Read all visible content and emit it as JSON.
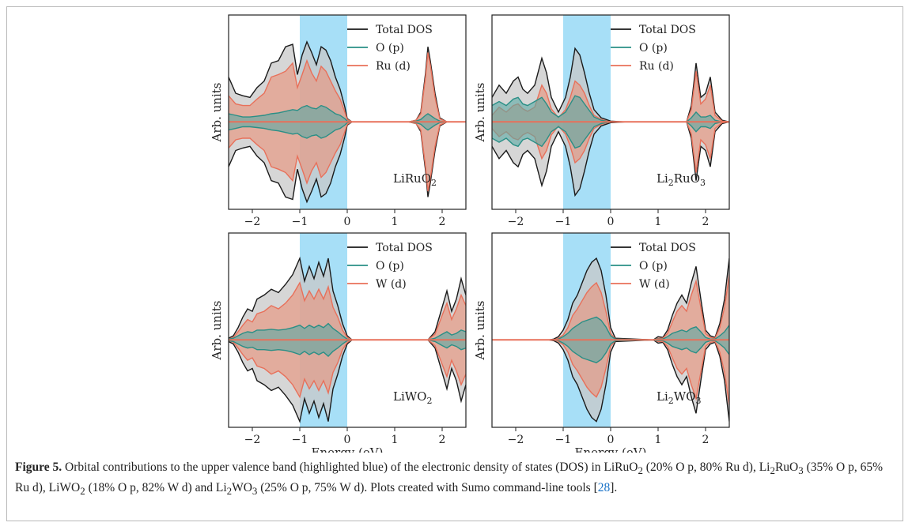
{
  "caption": {
    "label": "Figure 5.",
    "text_a": " Orbital contributions to the upper valence band (highlighted blue) of the electronic density of states (DOS) in LiRuO",
    "text_b": " (20% O p, 80% Ru d), Li",
    "text_c": "RuO",
    "text_d": " (35% O p, 65% Ru d), LiWO",
    "text_e": " (18% O p, 82% W d) and Li",
    "text_f": "WO",
    "text_g": " (25% O p, 75% W d). Plots created with Sumo command-line tools ",
    "ref_open": "[",
    "ref": "28",
    "ref_close": "].",
    "sub2": "2",
    "sub3": "3"
  },
  "colors": {
    "total": "#1a1a1a",
    "o_p": "#2a8f86",
    "metal_d": "#e8705a",
    "highlight": "#a7dff7",
    "total_fill": "#c8c8c8",
    "o_fill": "#5aa8a3",
    "d_fill": "#e79a85"
  },
  "chart_data": [
    {
      "type": "area",
      "material": "LiRuO2",
      "label_main": "LiRuO",
      "label_sub": [
        "2"
      ],
      "xlabel": "",
      "ylabel": "Arb. units",
      "xlim": [
        -2.5,
        2.5
      ],
      "xticks": [
        -2,
        -1,
        0,
        1,
        2
      ],
      "highlight": [
        -1,
        0
      ],
      "legend": [
        "Total DOS",
        "O (p)",
        "Ru (d)"
      ],
      "x": [
        -2.5,
        -2.35,
        -2.2,
        -2.05,
        -1.9,
        -1.75,
        -1.6,
        -1.45,
        -1.3,
        -1.15,
        -1.05,
        -0.95,
        -0.85,
        -0.75,
        -0.65,
        -0.55,
        -0.45,
        -0.35,
        -0.25,
        -0.15,
        -0.05,
        0.0,
        0.1,
        1.3,
        1.45,
        1.55,
        1.65,
        1.7,
        1.75,
        1.85,
        1.95,
        2.1,
        2.5
      ],
      "series": [
        {
          "name": "Total DOS",
          "values": [
            0.55,
            0.35,
            0.32,
            0.3,
            0.42,
            0.5,
            0.72,
            0.75,
            0.92,
            0.95,
            0.58,
            0.82,
            0.98,
            0.85,
            0.7,
            0.92,
            0.88,
            0.75,
            0.55,
            0.4,
            0.18,
            0.04,
            0.0,
            0.0,
            0.02,
            0.12,
            0.6,
            0.92,
            0.75,
            0.35,
            0.05,
            0.0,
            0.0
          ]
        },
        {
          "name": "O (p)",
          "values": [
            0.1,
            0.08,
            0.06,
            0.06,
            0.07,
            0.08,
            0.1,
            0.11,
            0.13,
            0.15,
            0.14,
            0.18,
            0.2,
            0.17,
            0.16,
            0.2,
            0.18,
            0.14,
            0.1,
            0.08,
            0.04,
            0.01,
            0.0,
            0.0,
            0.01,
            0.03,
            0.08,
            0.1,
            0.08,
            0.04,
            0.01,
            0.0,
            0.0
          ]
        },
        {
          "name": "Ru (d)",
          "values": [
            0.32,
            0.22,
            0.2,
            0.2,
            0.28,
            0.35,
            0.55,
            0.58,
            0.62,
            0.72,
            0.42,
            0.58,
            0.75,
            0.6,
            0.5,
            0.68,
            0.62,
            0.5,
            0.38,
            0.28,
            0.12,
            0.03,
            0.0,
            0.0,
            0.02,
            0.1,
            0.55,
            0.85,
            0.7,
            0.3,
            0.04,
            0.0,
            0.0
          ]
        }
      ]
    },
    {
      "type": "area",
      "material": "Li2RuO3",
      "label_main": "Li",
      "label_sub": [
        "2",
        "3"
      ],
      "xlabel": "",
      "ylabel": "Arb. units",
      "xlim": [
        -2.5,
        2.5
      ],
      "xticks": [
        -2,
        -1,
        0,
        1,
        2
      ],
      "highlight": [
        -1,
        0
      ],
      "legend": [
        "Total DOS",
        "O (p)",
        "Ru (d)"
      ],
      "x": [
        -2.5,
        -2.35,
        -2.2,
        -2.05,
        -1.95,
        -1.85,
        -1.75,
        -1.6,
        -1.45,
        -1.35,
        -1.25,
        -1.1,
        -0.95,
        -0.85,
        -0.75,
        -0.65,
        -0.55,
        -0.45,
        -0.35,
        -0.2,
        0.0,
        0.3,
        1.6,
        1.7,
        1.8,
        1.9,
        2.0,
        2.1,
        2.2,
        2.35,
        2.5
      ],
      "series": [
        {
          "name": "Total DOS",
          "values": [
            0.3,
            0.45,
            0.35,
            0.5,
            0.55,
            0.4,
            0.35,
            0.45,
            0.78,
            0.6,
            0.3,
            0.12,
            0.3,
            0.55,
            0.9,
            0.82,
            0.6,
            0.35,
            0.15,
            0.05,
            0.01,
            0.0,
            0.0,
            0.2,
            0.72,
            0.3,
            0.35,
            0.55,
            0.12,
            0.02,
            0.0
          ]
        },
        {
          "name": "O (p)",
          "values": [
            0.2,
            0.25,
            0.2,
            0.28,
            0.3,
            0.22,
            0.2,
            0.25,
            0.3,
            0.22,
            0.12,
            0.06,
            0.12,
            0.22,
            0.32,
            0.3,
            0.22,
            0.14,
            0.06,
            0.02,
            0.0,
            0.0,
            0.0,
            0.05,
            0.12,
            0.06,
            0.06,
            0.08,
            0.02,
            0.0,
            0.0
          ]
        },
        {
          "name": "Ru (d)",
          "values": [
            0.08,
            0.18,
            0.12,
            0.2,
            0.22,
            0.16,
            0.13,
            0.18,
            0.45,
            0.35,
            0.16,
            0.05,
            0.15,
            0.3,
            0.5,
            0.45,
            0.35,
            0.2,
            0.08,
            0.03,
            0.0,
            0.0,
            0.0,
            0.15,
            0.62,
            0.22,
            0.28,
            0.45,
            0.08,
            0.01,
            0.0
          ]
        }
      ]
    },
    {
      "type": "area",
      "material": "LiWO2",
      "label_main": "LiWO",
      "label_sub": [
        "2"
      ],
      "xlabel": "Energy (eV)",
      "ylabel": "Arb. units",
      "xlim": [
        -2.5,
        2.5
      ],
      "xticks": [
        -2,
        -1,
        0,
        1,
        2
      ],
      "highlight": [
        -1,
        0
      ],
      "legend": [
        "Total DOS",
        "O (p)",
        "W (d)"
      ],
      "x": [
        -2.5,
        -2.4,
        -2.3,
        -2.2,
        -2.1,
        -2.0,
        -1.9,
        -1.75,
        -1.6,
        -1.45,
        -1.3,
        -1.15,
        -1.0,
        -0.9,
        -0.8,
        -0.7,
        -0.6,
        -0.5,
        -0.4,
        -0.3,
        -0.2,
        -0.1,
        0.0,
        0.1,
        1.7,
        1.85,
        2.0,
        2.1,
        2.2,
        2.3,
        2.4,
        2.5
      ],
      "series": [
        {
          "name": "Total DOS",
          "values": [
            0.02,
            0.05,
            0.15,
            0.28,
            0.38,
            0.35,
            0.5,
            0.55,
            0.62,
            0.58,
            0.68,
            0.8,
            1.0,
            0.72,
            0.9,
            0.75,
            0.95,
            0.78,
            1.0,
            0.6,
            0.42,
            0.2,
            0.05,
            0.0,
            0.0,
            0.1,
            0.4,
            0.6,
            0.35,
            0.5,
            0.75,
            0.55
          ]
        },
        {
          "name": "O (p)",
          "values": [
            0.01,
            0.02,
            0.05,
            0.08,
            0.1,
            0.09,
            0.12,
            0.12,
            0.13,
            0.12,
            0.13,
            0.15,
            0.18,
            0.14,
            0.18,
            0.15,
            0.18,
            0.15,
            0.2,
            0.14,
            0.1,
            0.05,
            0.01,
            0.0,
            0.0,
            0.02,
            0.07,
            0.1,
            0.06,
            0.08,
            0.12,
            0.1
          ]
        },
        {
          "name": "W (d)",
          "values": [
            0.01,
            0.03,
            0.1,
            0.18,
            0.25,
            0.22,
            0.32,
            0.35,
            0.42,
            0.38,
            0.45,
            0.55,
            0.7,
            0.48,
            0.6,
            0.5,
            0.62,
            0.5,
            0.65,
            0.4,
            0.28,
            0.12,
            0.03,
            0.0,
            0.0,
            0.07,
            0.3,
            0.45,
            0.25,
            0.38,
            0.55,
            0.42
          ]
        }
      ]
    },
    {
      "type": "area",
      "material": "Li2WO3",
      "label_main": "Li",
      "label_sub": [
        "2",
        "3"
      ],
      "xlabel": "Energy (eV)",
      "ylabel": "Arb. units",
      "xlim": [
        -2.5,
        2.5
      ],
      "xticks": [
        -2,
        -1,
        0,
        1,
        2
      ],
      "highlight": [
        -1,
        0
      ],
      "legend": [
        "Total DOS",
        "O (p)",
        "W (d)"
      ],
      "x": [
        -2.5,
        -1.3,
        -1.2,
        -1.1,
        -1.0,
        -0.9,
        -0.8,
        -0.7,
        -0.6,
        -0.5,
        -0.4,
        -0.3,
        -0.2,
        -0.1,
        0.0,
        0.1,
        0.9,
        0.95,
        1.0,
        1.1,
        1.2,
        1.3,
        1.4,
        1.5,
        1.6,
        1.7,
        1.8,
        1.9,
        2.0,
        2.1,
        2.2,
        2.3,
        2.4,
        2.5
      ],
      "series": [
        {
          "name": "Total DOS",
          "values": [
            0.0,
            0.0,
            0.01,
            0.04,
            0.12,
            0.25,
            0.45,
            0.55,
            0.7,
            0.85,
            0.95,
            1.0,
            0.85,
            0.55,
            0.15,
            0.02,
            0.0,
            0.02,
            0.04,
            0.03,
            0.12,
            0.3,
            0.45,
            0.55,
            0.45,
            0.7,
            0.9,
            0.5,
            0.12,
            0.05,
            0.03,
            0.2,
            0.5,
            1.0
          ]
        },
        {
          "name": "O (p)",
          "values": [
            0.0,
            0.0,
            0.0,
            0.01,
            0.04,
            0.08,
            0.14,
            0.18,
            0.22,
            0.24,
            0.26,
            0.28,
            0.24,
            0.16,
            0.05,
            0.01,
            0.0,
            0.01,
            0.01,
            0.01,
            0.04,
            0.08,
            0.1,
            0.12,
            0.1,
            0.14,
            0.16,
            0.1,
            0.03,
            0.01,
            0.01,
            0.05,
            0.1,
            0.18
          ]
        },
        {
          "name": "W (d)",
          "values": [
            0.0,
            0.0,
            0.0,
            0.02,
            0.06,
            0.15,
            0.3,
            0.38,
            0.48,
            0.58,
            0.65,
            0.7,
            0.58,
            0.35,
            0.08,
            0.01,
            0.0,
            0.01,
            0.02,
            0.02,
            0.08,
            0.22,
            0.35,
            0.42,
            0.35,
            0.55,
            0.72,
            0.4,
            0.08,
            0.03,
            0.02,
            0.15,
            0.4,
            0.8
          ]
        }
      ]
    }
  ]
}
